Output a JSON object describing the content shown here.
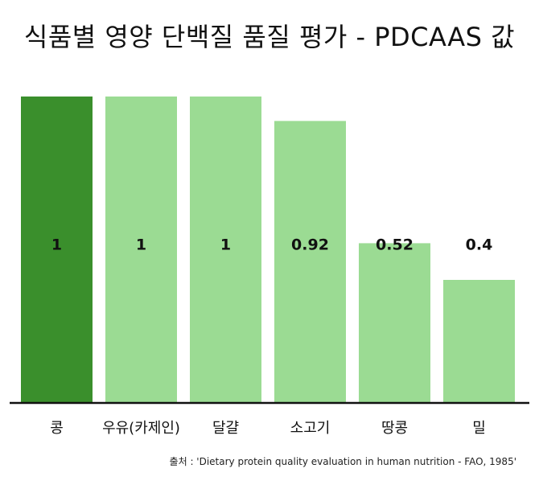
{
  "chart_data": {
    "type": "bar",
    "title": "식품별 영양 단백질 품질 평가 - PDCAAS 값",
    "categories": [
      "콩",
      "우유(카제인)",
      "달걀",
      "소고기",
      "땅콩",
      "밀"
    ],
    "values": [
      1,
      1,
      1,
      0.92,
      0.52,
      0.4
    ],
    "value_labels": [
      "1",
      "1",
      "1",
      "0.92",
      "0.52",
      "0.4"
    ],
    "ylim": [
      0,
      1
    ],
    "grid": false,
    "legend": "none",
    "colors": {
      "highlight": "#3a8f2c",
      "bar": "#9bdb93",
      "axis": "#111111"
    },
    "highlight_index": 0
  },
  "source": "출처 : 'Dietary protein quality evaluation in human nutrition - FAO, 1985'"
}
